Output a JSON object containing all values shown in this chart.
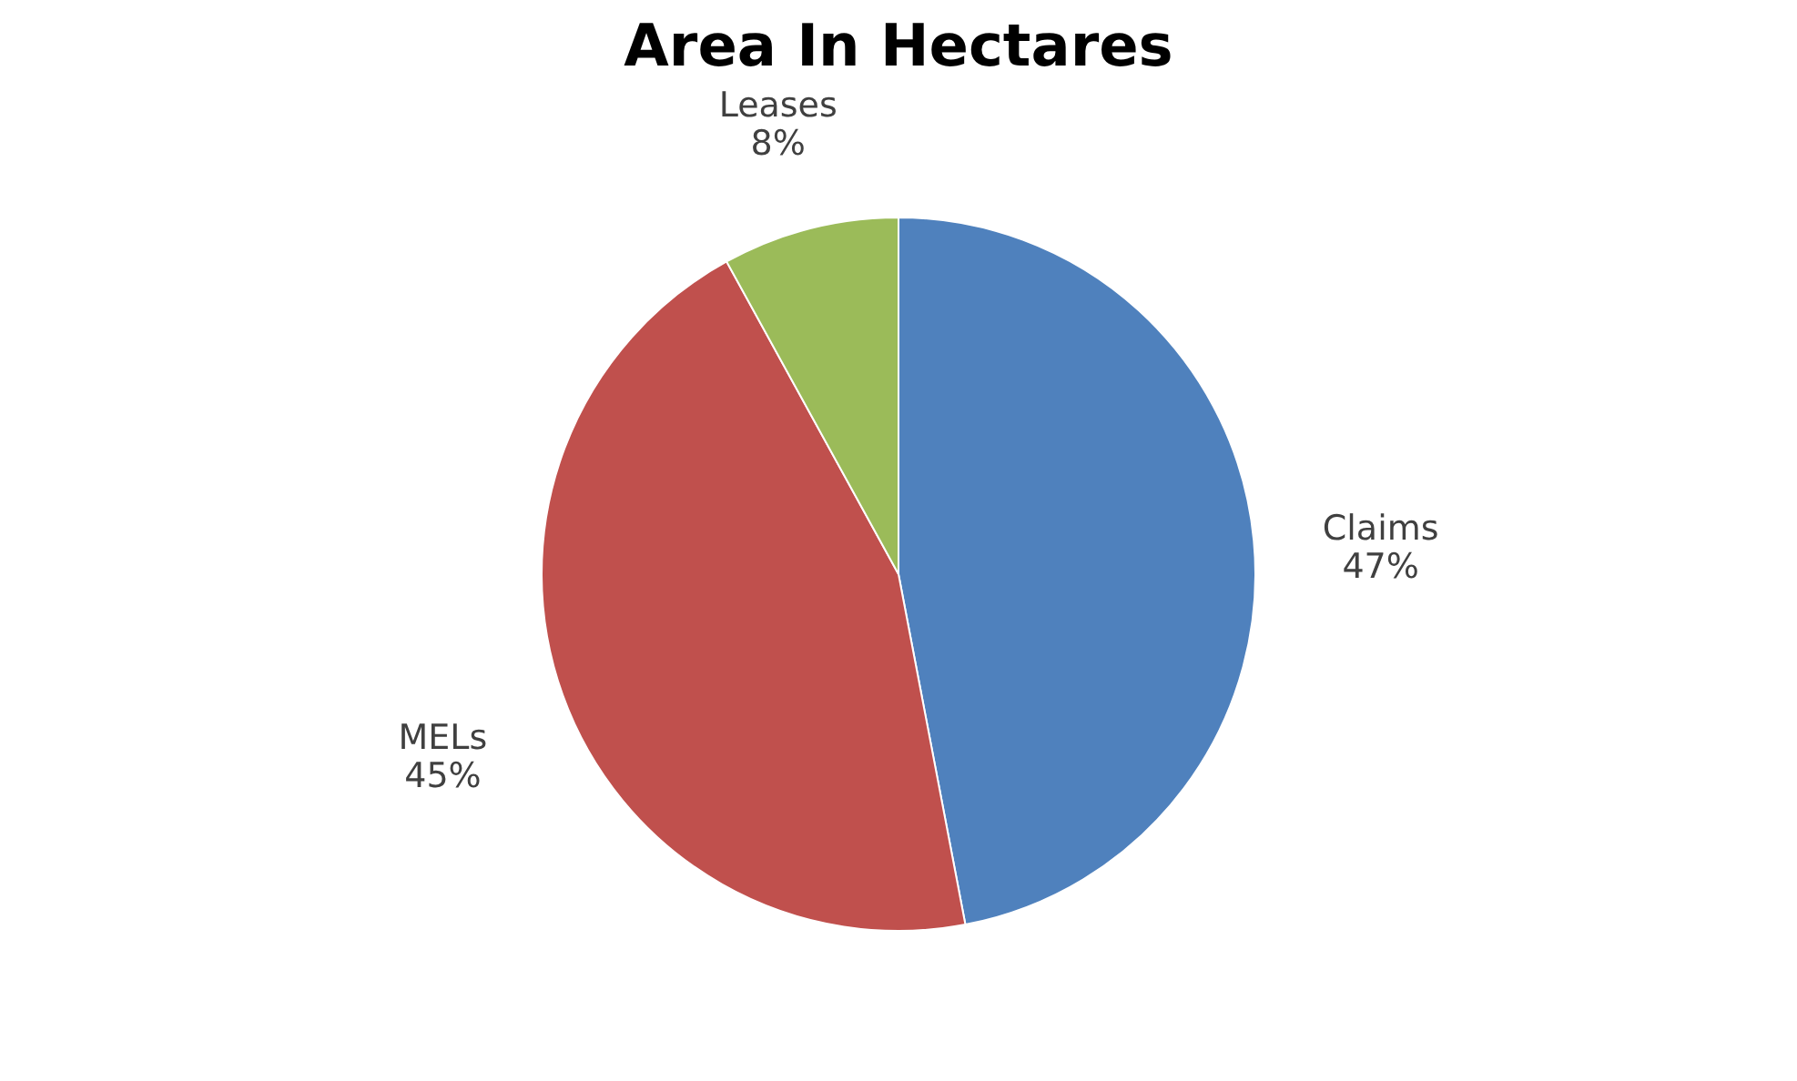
{
  "chart_data": {
    "type": "pie",
    "title": "Area In Hectares",
    "categories": [
      "Claims",
      "MELs",
      "Leases"
    ],
    "values": [
      47,
      45,
      8
    ],
    "value_labels": [
      "47%",
      "45%",
      "8%"
    ],
    "colors": [
      "#4f81bd",
      "#c0504d",
      "#9bbb59"
    ],
    "legend": false
  }
}
